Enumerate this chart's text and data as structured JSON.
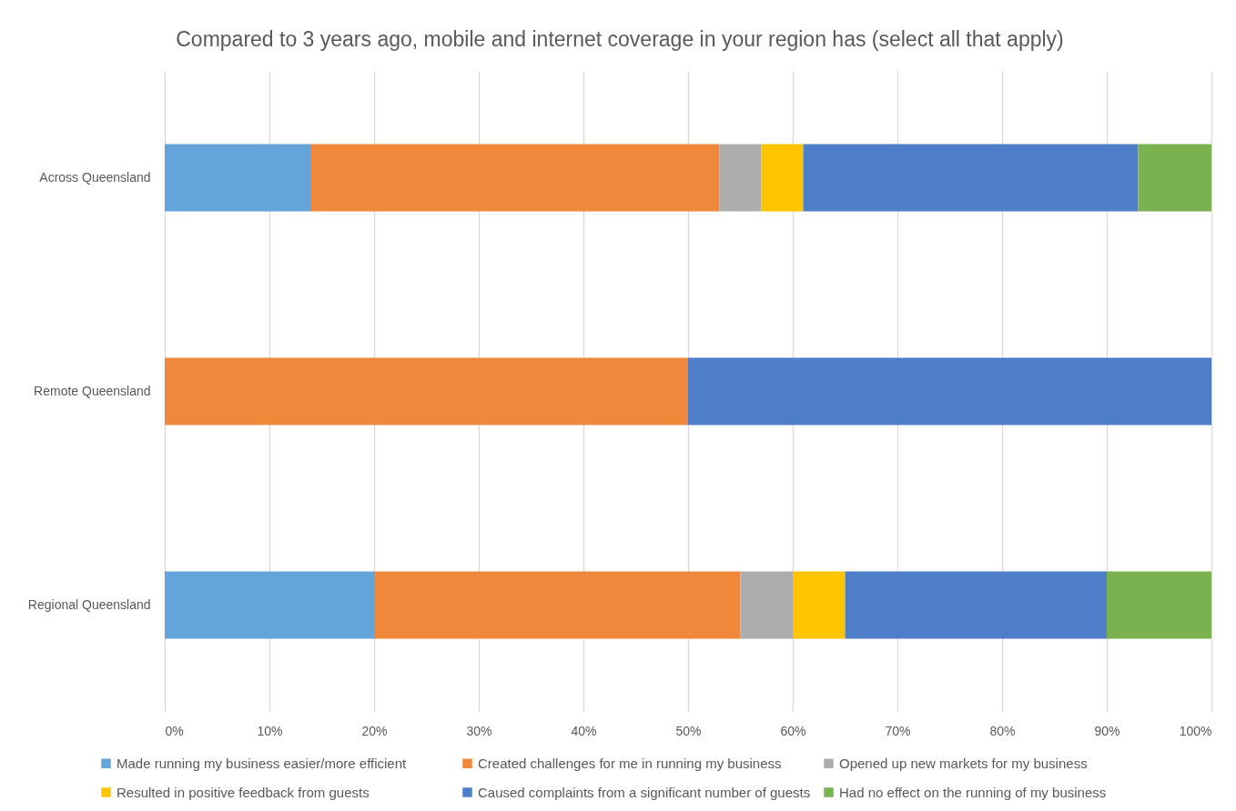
{
  "chart_data": {
    "type": "bar",
    "title": "Compared to 3 years ago, mobile and internet coverage in your region has (select all that apply)",
    "orientation": "horizontal",
    "stacked": true,
    "categories": [
      "Across Queensland",
      "Remote Queensland",
      "Regional Queensland"
    ],
    "series": [
      {
        "name": "Made running my business easier/more efficient",
        "color": "#65a3db",
        "values": [
          14,
          null,
          20
        ]
      },
      {
        "name": "Created challenges for me in running my business",
        "color": "#f0883c",
        "values": [
          39,
          50,
          35
        ]
      },
      {
        "name": "Opened up new markets for my business",
        "color": "#adadad",
        "values": [
          4,
          null,
          5
        ]
      },
      {
        "name": "Resulted in positive feedback from guests",
        "color": "#ffc400",
        "values": [
          4,
          null,
          5
        ]
      },
      {
        "name": "Caused complaints from a significant number of guests",
        "color": "#4e7ec8",
        "values": [
          32,
          50,
          25
        ]
      },
      {
        "name": "Had no effect on the running of my business",
        "color": "#7ab250",
        "values": [
          7,
          null,
          10
        ]
      }
    ],
    "xlim": [
      0,
      100
    ],
    "xticks": [
      {
        "value": 0,
        "label": "0%"
      },
      {
        "value": 10,
        "label": "10%"
      },
      {
        "value": 20,
        "label": "20%"
      },
      {
        "value": 30,
        "label": "30%"
      },
      {
        "value": 40,
        "label": "40%"
      },
      {
        "value": 50,
        "label": "50%"
      },
      {
        "value": 60,
        "label": "60%"
      },
      {
        "value": 70,
        "label": "70%"
      },
      {
        "value": 80,
        "label": "80%"
      },
      {
        "value": 90,
        "label": "90%"
      },
      {
        "value": 100,
        "label": "100%"
      }
    ],
    "grid": "x",
    "legend": "bottom"
  }
}
